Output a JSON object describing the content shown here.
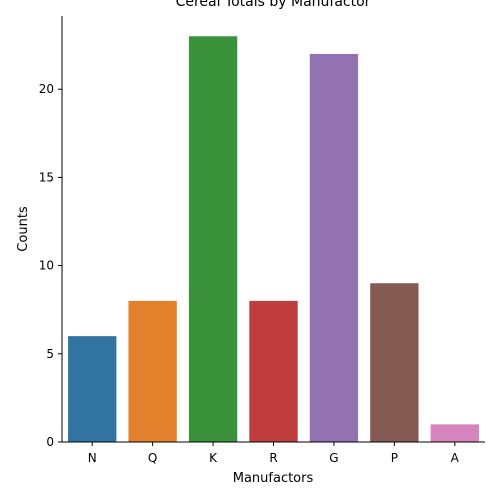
{
  "chart_data": {
    "type": "bar",
    "title": "Cereal Totals by Manufactor",
    "xlabel": "Manufactors",
    "ylabel": "Counts",
    "categories": [
      "N",
      "Q",
      "K",
      "R",
      "G",
      "P",
      "A"
    ],
    "values": [
      6,
      8,
      23,
      8,
      22,
      9,
      1
    ],
    "colors": [
      "#3274a1",
      "#e1812c",
      "#3a923a",
      "#c03d3e",
      "#9372b2",
      "#845b53",
      "#d684bd"
    ],
    "ylim": [
      0,
      24.15
    ],
    "yticks": [
      0,
      5,
      10,
      15,
      20
    ],
    "grid": false,
    "legend": "none"
  }
}
